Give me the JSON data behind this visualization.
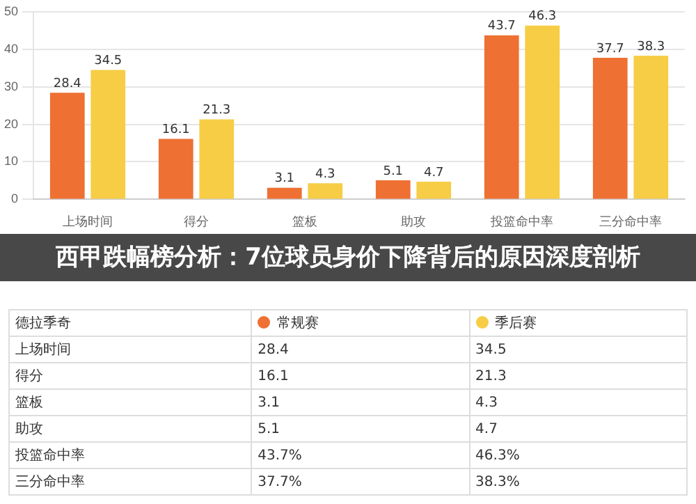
{
  "chart_data": {
    "type": "bar",
    "title": "西甲跌幅榜分析：7位球员身价下降背后的原因深度剖析",
    "legend_title": "德拉季奇",
    "categories": [
      "上场时间",
      "得分",
      "篮板",
      "助攻",
      "投篮命中率",
      "三分命中率"
    ],
    "series": [
      {
        "name": "常规赛",
        "color": "#ee7033",
        "values": [
          28.4,
          16.1,
          3.1,
          5.1,
          43.7,
          37.7
        ]
      },
      {
        "name": "季后赛",
        "color": "#f6cd45",
        "values": [
          34.5,
          21.3,
          4.3,
          4.7,
          46.3,
          38.3
        ]
      }
    ],
    "annotations": [
      "28.4",
      "34.5",
      "16.1",
      "21.3",
      "3.1",
      "4.3",
      "5.1",
      "4.7",
      "43.7%",
      "46.3%",
      "37.7%",
      "38.3%"
    ],
    "ylim": [
      0,
      50
    ],
    "yticks": [
      0,
      10,
      20,
      30,
      40,
      50
    ],
    "grid": "y",
    "data_labels": true,
    "legend": "bottom"
  }
}
